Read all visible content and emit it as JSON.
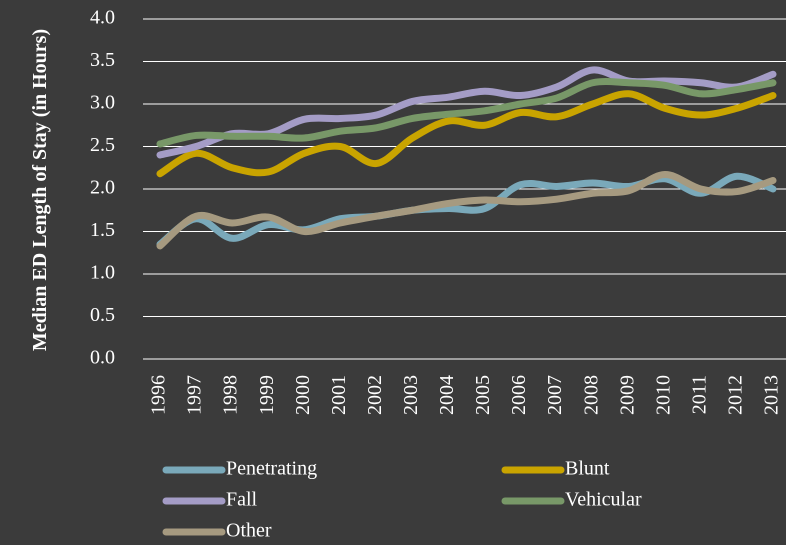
{
  "chart_data": {
    "type": "line",
    "y_label": "Median ED Length of Stay (in Hours)",
    "categories": [
      "1996",
      "1997",
      "1998",
      "1999",
      "2000",
      "2001",
      "2002",
      "2003",
      "2004",
      "2005",
      "2006",
      "2007",
      "2008",
      "2009",
      "2010",
      "2011",
      "2012",
      "2013"
    ],
    "series": [
      {
        "name": "Penetrating",
        "color": "#7aa9ba",
        "values": [
          1.35,
          1.65,
          1.42,
          1.58,
          1.52,
          1.65,
          1.68,
          1.75,
          1.77,
          1.77,
          2.05,
          2.03,
          2.07,
          2.03,
          2.12,
          1.95,
          2.15,
          2.0
        ]
      },
      {
        "name": "Blunt",
        "color": "#c9a400",
        "values": [
          2.18,
          2.42,
          2.25,
          2.2,
          2.42,
          2.5,
          2.3,
          2.6,
          2.8,
          2.75,
          2.9,
          2.85,
          3.0,
          3.12,
          2.95,
          2.87,
          2.95,
          3.1
        ]
      },
      {
        "name": "Fall",
        "color": "#a49cc6",
        "values": [
          2.4,
          2.5,
          2.65,
          2.65,
          2.82,
          2.83,
          2.87,
          3.03,
          3.08,
          3.15,
          3.1,
          3.2,
          3.4,
          3.27,
          3.27,
          3.25,
          3.2,
          3.35
        ]
      },
      {
        "name": "Vehicular",
        "color": "#789868",
        "values": [
          2.53,
          2.63,
          2.62,
          2.62,
          2.6,
          2.68,
          2.72,
          2.83,
          2.88,
          2.92,
          3.0,
          3.07,
          3.25,
          3.25,
          3.22,
          3.12,
          3.17,
          3.25
        ]
      },
      {
        "name": "Other",
        "color": "#a69a80",
        "values": [
          1.33,
          1.68,
          1.6,
          1.67,
          1.5,
          1.6,
          1.68,
          1.75,
          1.83,
          1.87,
          1.85,
          1.88,
          1.95,
          1.98,
          2.17,
          2.0,
          1.97,
          2.1
        ]
      }
    ],
    "ylim": [
      0,
      4
    ],
    "yticks": [
      {
        "value": 0,
        "label": "0.0"
      },
      0.5,
      {
        "value": 1,
        "label": "1.0"
      },
      1.5,
      {
        "value": 2,
        "label": "2.0"
      },
      2.5,
      {
        "value": 3,
        "label": "3.0"
      },
      3.5,
      {
        "value": 4,
        "label": "4.0"
      }
    ],
    "grid": true
  }
}
